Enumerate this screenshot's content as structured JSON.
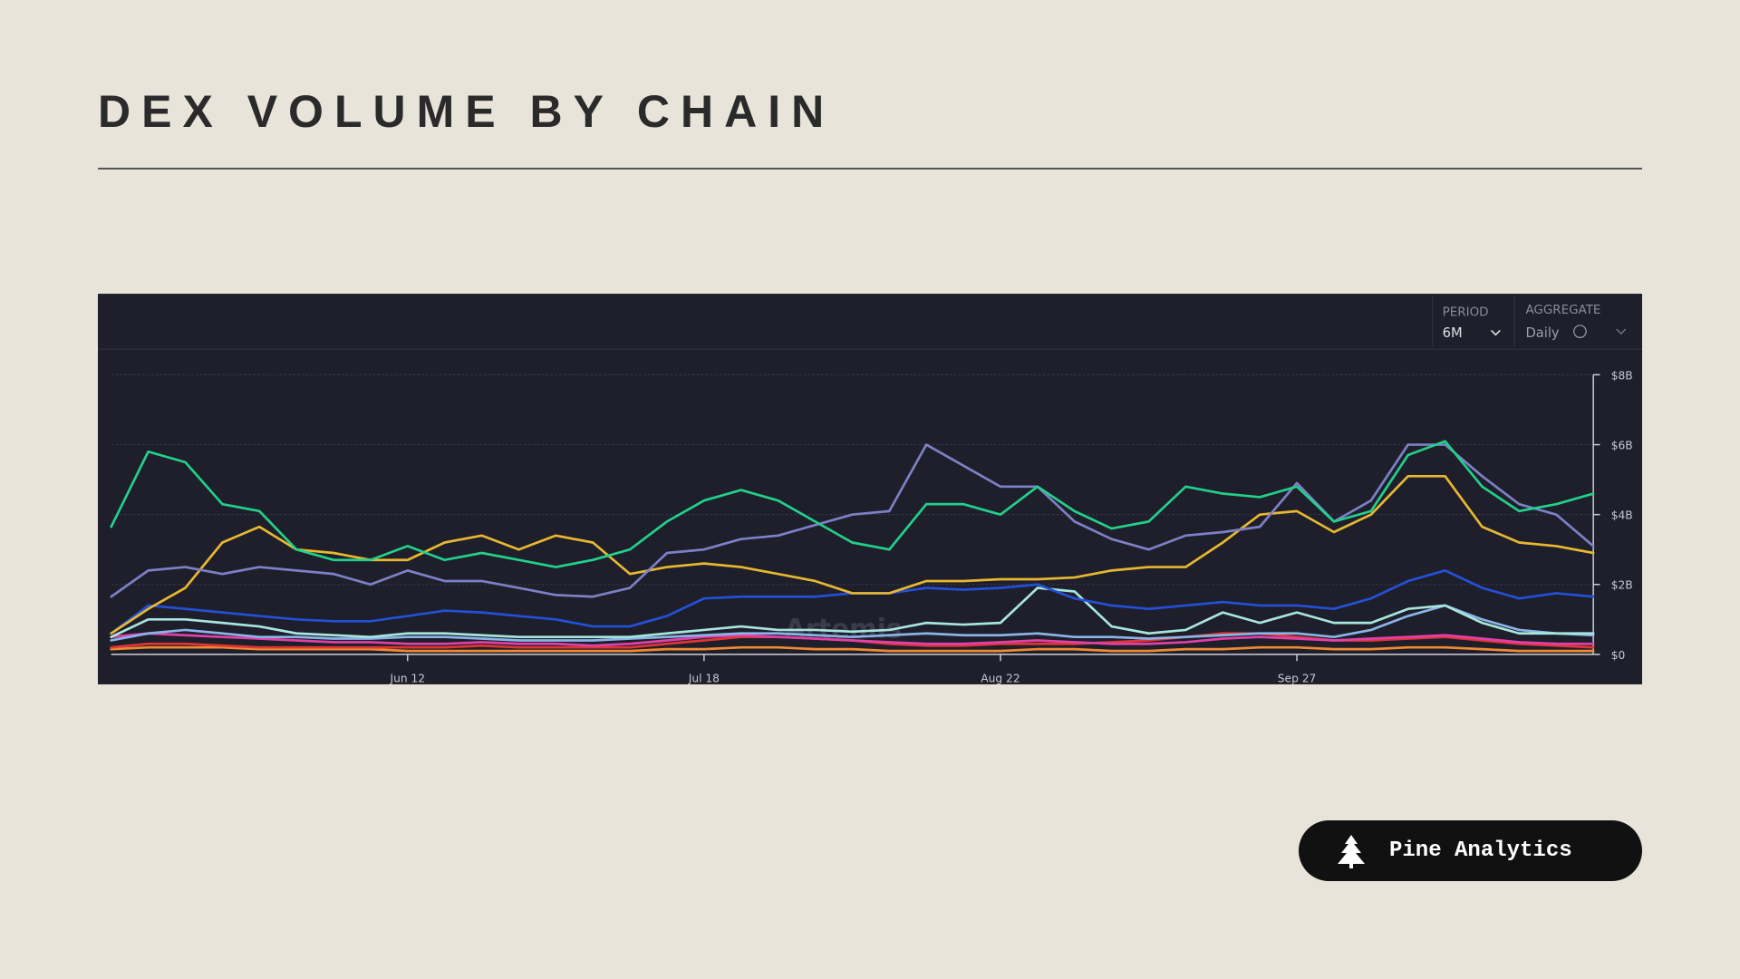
{
  "header": {
    "title": "DEX VOLUME BY CHAIN"
  },
  "controls": {
    "period_label": "PERIOD",
    "period_value": "6M",
    "aggregate_label": "AGGREGATE",
    "aggregate_value": "Daily"
  },
  "watermark": "Artemis",
  "footer": {
    "brand": "Pine Analytics"
  },
  "chart_data": {
    "type": "line",
    "categories": [
      null,
      null,
      null,
      null,
      null,
      null,
      null,
      null,
      "Jun 12",
      null,
      null,
      null,
      null,
      null,
      null,
      null,
      "Jul 18",
      null,
      null,
      null,
      null,
      null,
      null,
      null,
      "Aug 22",
      null,
      null,
      null,
      null,
      null,
      null,
      null,
      "Sep 27",
      null,
      null,
      null,
      null,
      null,
      null,
      null,
      null
    ],
    "ylim": [
      0,
      8
    ],
    "yticks": [
      {
        "value": 0,
        "label": "$0"
      },
      {
        "value": 2,
        "label": "$2B"
      },
      {
        "value": 4,
        "label": "$4B"
      },
      {
        "value": 6,
        "label": "$6B"
      },
      {
        "value": 8,
        "label": "$8B"
      }
    ],
    "grid": true,
    "series": [
      {
        "color": "#f08a30",
        "values": [
          0.15,
          0.2,
          0.2,
          0.2,
          0.15,
          0.15,
          0.15,
          0.15,
          0.1,
          0.1,
          0.1,
          0.1,
          0.1,
          0.1,
          0.1,
          0.15,
          0.15,
          0.2,
          0.2,
          0.15,
          0.15,
          0.1,
          0.1,
          0.1,
          0.1,
          0.15,
          0.15,
          0.1,
          0.1,
          0.15,
          0.15,
          0.2,
          0.2,
          0.15,
          0.15,
          0.2,
          0.2,
          0.15,
          0.1,
          0.1,
          0.1
        ]
      },
      {
        "color": "#e03535",
        "values": [
          0.2,
          0.3,
          0.3,
          0.25,
          0.2,
          0.2,
          0.2,
          0.2,
          0.2,
          0.2,
          0.25,
          0.2,
          0.2,
          0.2,
          0.2,
          0.3,
          0.4,
          0.5,
          0.5,
          0.45,
          0.4,
          0.3,
          0.25,
          0.25,
          0.3,
          0.3,
          0.3,
          0.35,
          0.4,
          0.5,
          0.6,
          0.6,
          0.5,
          0.4,
          0.4,
          0.45,
          0.5,
          0.4,
          0.3,
          0.25,
          0.2
        ]
      },
      {
        "color": "#e040a8",
        "values": [
          0.5,
          0.6,
          0.55,
          0.5,
          0.45,
          0.4,
          0.35,
          0.35,
          0.3,
          0.3,
          0.35,
          0.3,
          0.3,
          0.25,
          0.3,
          0.4,
          0.5,
          0.55,
          0.5,
          0.45,
          0.4,
          0.35,
          0.3,
          0.3,
          0.35,
          0.4,
          0.35,
          0.3,
          0.3,
          0.35,
          0.45,
          0.5,
          0.45,
          0.4,
          0.45,
          0.5,
          0.55,
          0.45,
          0.35,
          0.3,
          0.3
        ]
      },
      {
        "color": "#8ab4e8",
        "values": [
          0.4,
          0.6,
          0.7,
          0.6,
          0.5,
          0.5,
          0.45,
          0.45,
          0.5,
          0.5,
          0.45,
          0.4,
          0.4,
          0.4,
          0.45,
          0.5,
          0.55,
          0.6,
          0.6,
          0.55,
          0.5,
          0.55,
          0.6,
          0.55,
          0.55,
          0.6,
          0.5,
          0.5,
          0.45,
          0.5,
          0.55,
          0.6,
          0.6,
          0.5,
          0.7,
          1.1,
          1.4,
          1.0,
          0.7,
          0.6,
          0.55
        ]
      },
      {
        "color": "#a8e6dc",
        "values": [
          0.5,
          1.0,
          1.0,
          0.9,
          0.8,
          0.6,
          0.55,
          0.5,
          0.6,
          0.6,
          0.55,
          0.5,
          0.5,
          0.5,
          0.5,
          0.6,
          0.7,
          0.8,
          0.7,
          0.7,
          0.65,
          0.7,
          0.9,
          0.85,
          0.9,
          1.9,
          1.8,
          0.8,
          0.6,
          0.7,
          1.2,
          0.9,
          1.2,
          0.9,
          0.9,
          1.3,
          1.4,
          0.9,
          0.6,
          0.6,
          0.6
        ]
      },
      {
        "color": "#2450d8",
        "values": [
          0.6,
          1.4,
          1.3,
          1.2,
          1.1,
          1.0,
          0.95,
          0.95,
          1.1,
          1.25,
          1.2,
          1.1,
          1.0,
          0.8,
          0.8,
          1.1,
          1.6,
          1.65,
          1.65,
          1.65,
          1.75,
          1.75,
          1.9,
          1.85,
          1.9,
          2.0,
          1.6,
          1.4,
          1.3,
          1.4,
          1.5,
          1.4,
          1.4,
          1.3,
          1.6,
          2.1,
          2.4,
          1.9,
          1.6,
          1.75,
          1.65
        ]
      },
      {
        "color": "#e8b830",
        "values": [
          0.6,
          1.3,
          1.9,
          3.2,
          3.65,
          3.0,
          2.9,
          2.7,
          2.7,
          3.2,
          3.4,
          3.0,
          3.4,
          3.2,
          2.3,
          2.5,
          2.6,
          2.5,
          2.3,
          2.1,
          1.75,
          1.75,
          2.1,
          2.1,
          2.15,
          2.15,
          2.2,
          2.4,
          2.5,
          2.5,
          3.2,
          4.0,
          4.1,
          3.5,
          4.0,
          5.1,
          5.1,
          3.65,
          3.2,
          3.1,
          2.9
        ]
      },
      {
        "color": "#7d80c6",
        "values": [
          1.65,
          2.4,
          2.5,
          2.3,
          2.5,
          2.4,
          2.3,
          2.0,
          2.4,
          2.1,
          2.1,
          1.9,
          1.7,
          1.65,
          1.9,
          2.9,
          3.0,
          3.3,
          3.4,
          3.7,
          4.0,
          4.1,
          6.0,
          5.4,
          4.8,
          4.8,
          3.8,
          3.3,
          3.0,
          3.4,
          3.5,
          3.65,
          4.9,
          3.8,
          4.4,
          6.0,
          6.0,
          5.1,
          4.3,
          4.0,
          3.1
        ]
      },
      {
        "color": "#22d08a",
        "values": [
          3.65,
          5.8,
          5.5,
          4.3,
          4.1,
          3.0,
          2.7,
          2.7,
          3.1,
          2.7,
          2.9,
          2.7,
          2.5,
          2.7,
          3.0,
          3.8,
          4.4,
          4.7,
          4.4,
          3.8,
          3.2,
          3.0,
          4.3,
          4.3,
          4.0,
          4.8,
          4.1,
          3.6,
          3.8,
          4.8,
          4.6,
          4.5,
          4.8,
          3.8,
          4.1,
          5.7,
          6.1,
          4.8,
          4.1,
          4.3,
          4.6
        ]
      }
    ]
  }
}
